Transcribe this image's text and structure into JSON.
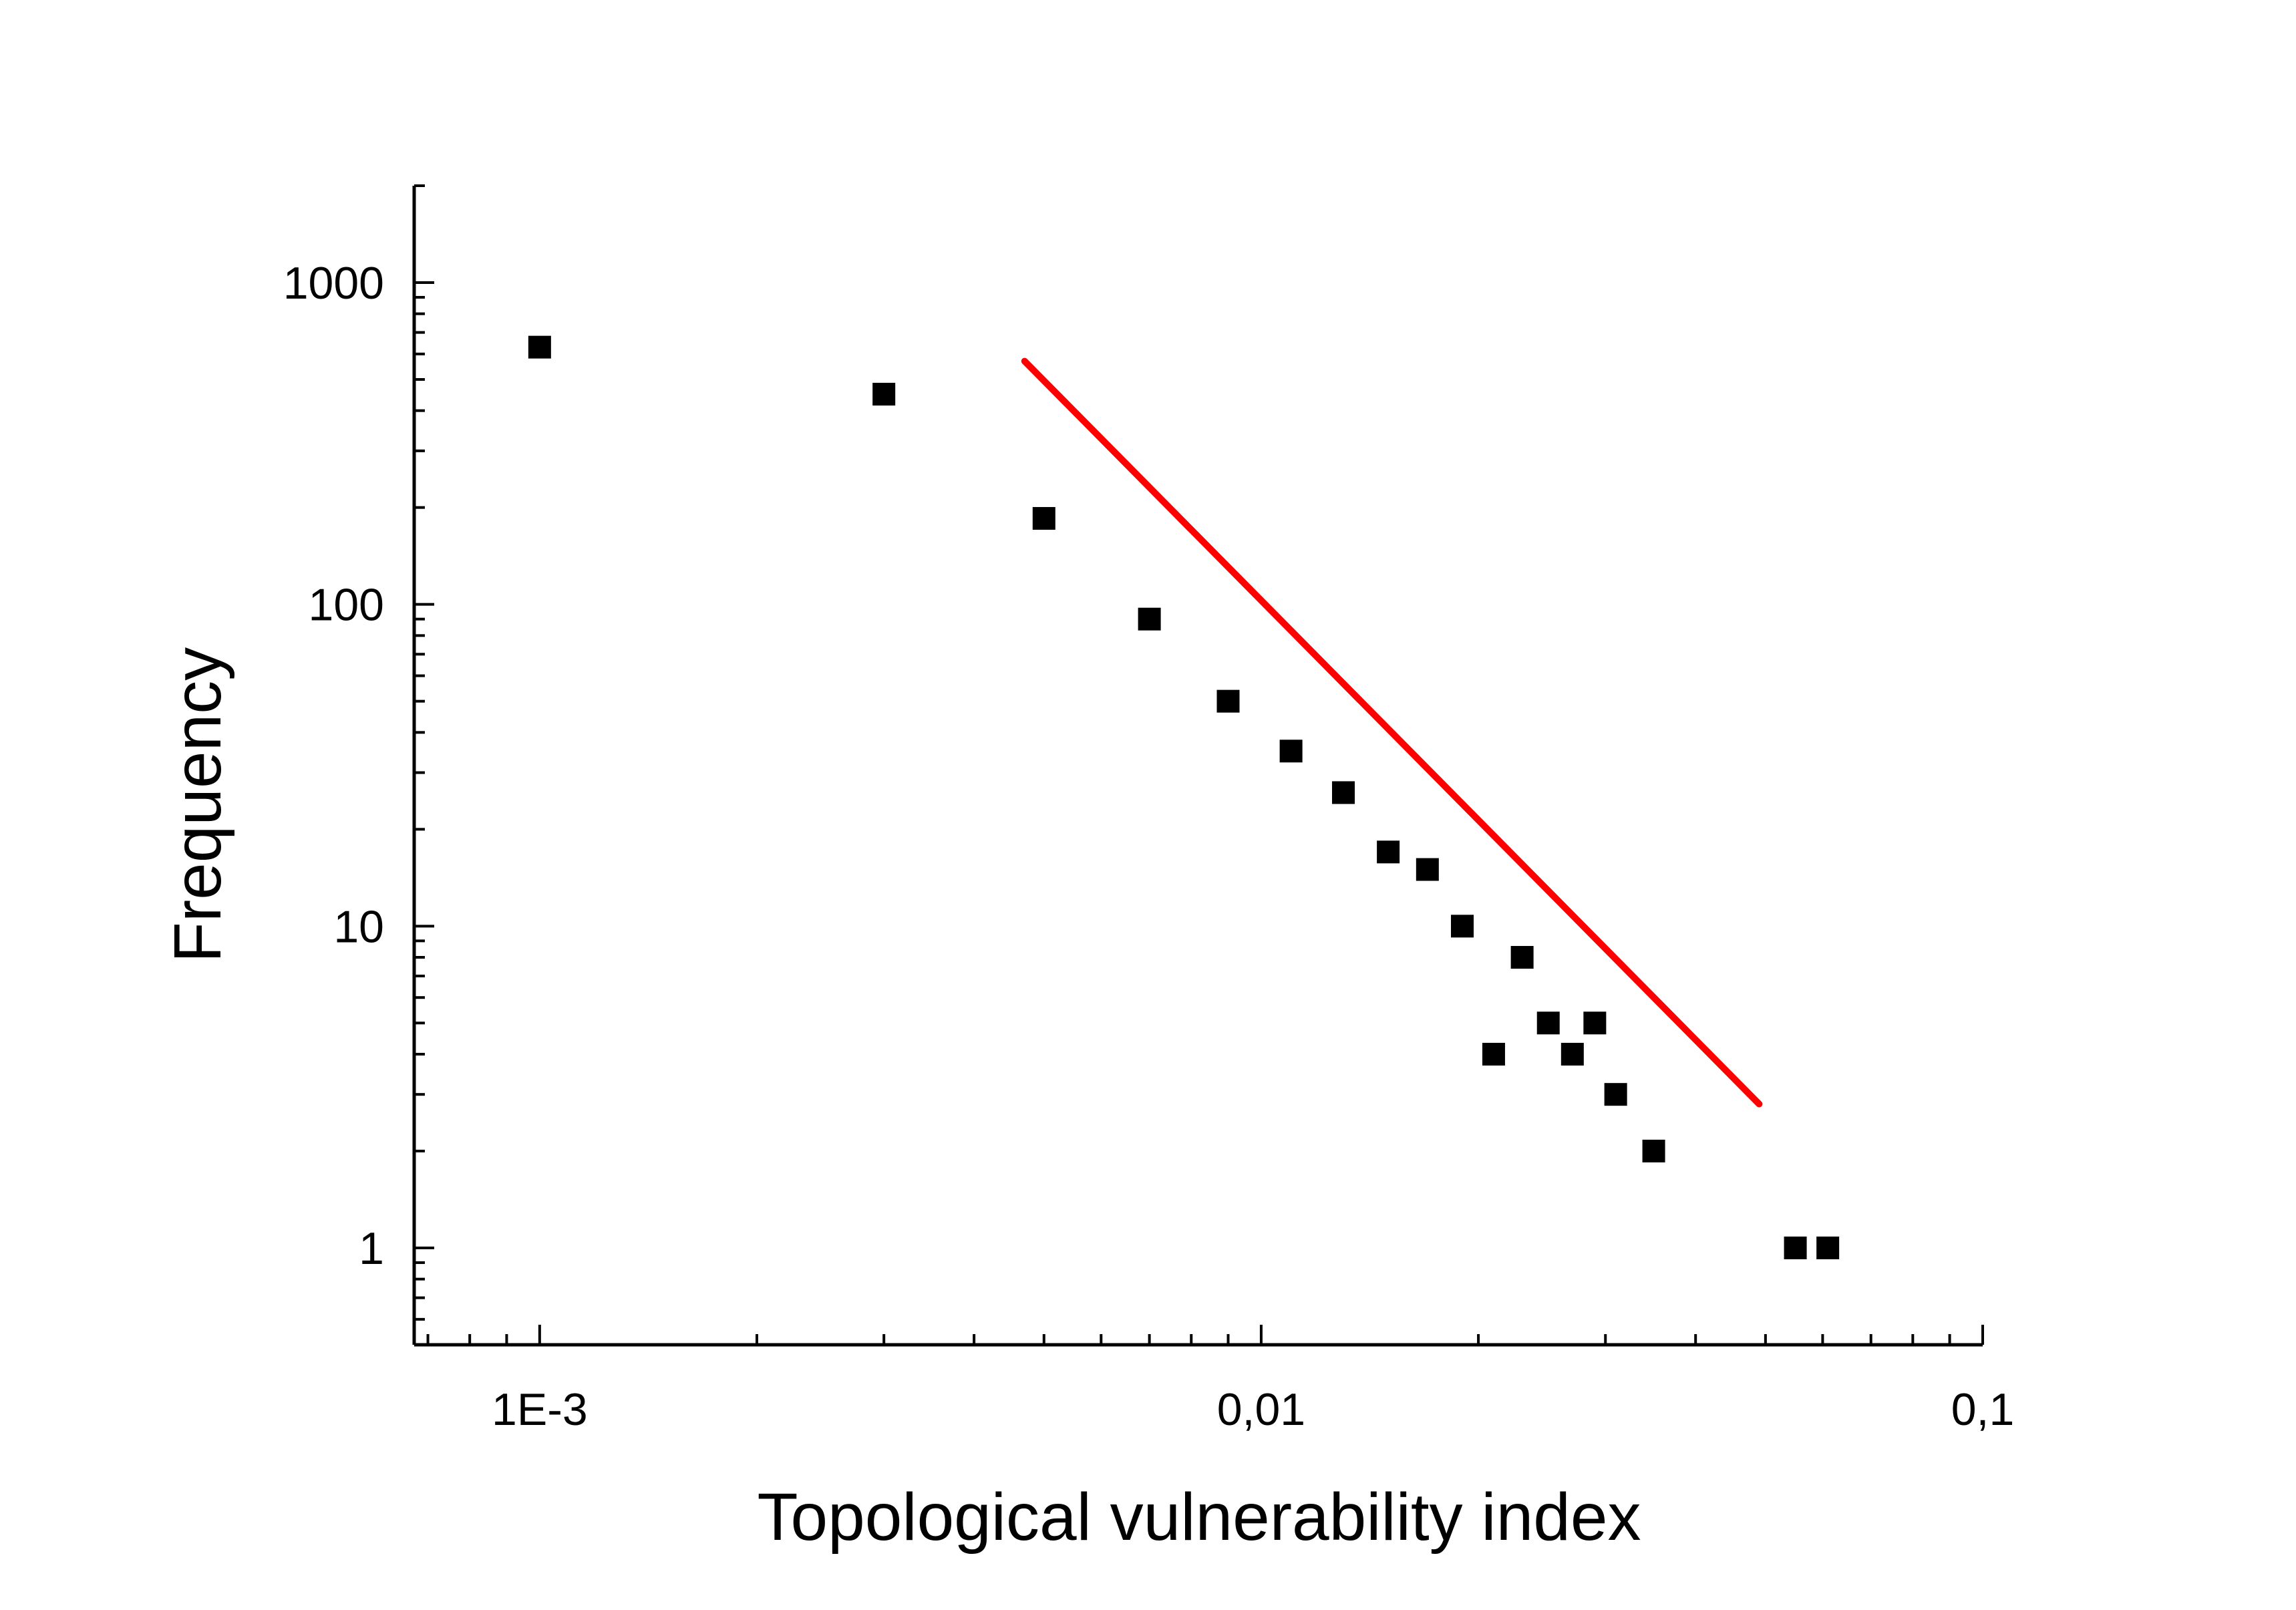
{
  "chart_data": {
    "type": "scatter",
    "title": "",
    "xlabel": "Topological vulnerability index",
    "ylabel": "Frequency",
    "xscale": "log",
    "yscale": "log",
    "xlim": [
      0.00067,
      0.1
    ],
    "ylim": [
      0.5,
      2000
    ],
    "grid": false,
    "x_ticks": [
      {
        "value": 0.001,
        "label": "1E-3"
      },
      {
        "value": 0.01,
        "label": "0,01"
      },
      {
        "value": 0.1,
        "label": "0,1"
      }
    ],
    "y_ticks": [
      {
        "value": 1,
        "label": "1"
      },
      {
        "value": 10,
        "label": "10"
      },
      {
        "value": 100,
        "label": "100"
      },
      {
        "value": 1000,
        "label": "1000"
      }
    ],
    "series": [
      {
        "name": "frequency",
        "marker": "square",
        "color": "#000000",
        "points": [
          {
            "x": 0.001,
            "y": 630
          },
          {
            "x": 0.003,
            "y": 450
          },
          {
            "x": 0.005,
            "y": 185
          },
          {
            "x": 0.007,
            "y": 90
          },
          {
            "x": 0.009,
            "y": 50
          },
          {
            "x": 0.011,
            "y": 35
          },
          {
            "x": 0.013,
            "y": 26
          },
          {
            "x": 0.015,
            "y": 17
          },
          {
            "x": 0.017,
            "y": 15
          },
          {
            "x": 0.019,
            "y": 10
          },
          {
            "x": 0.021,
            "y": 4
          },
          {
            "x": 0.023,
            "y": 8
          },
          {
            "x": 0.025,
            "y": 5
          },
          {
            "x": 0.027,
            "y": 4
          },
          {
            "x": 0.029,
            "y": 5
          },
          {
            "x": 0.031,
            "y": 3
          },
          {
            "x": 0.035,
            "y": 2
          },
          {
            "x": 0.055,
            "y": 1
          },
          {
            "x": 0.061,
            "y": 1
          }
        ]
      },
      {
        "name": "power-law fit",
        "kind": "line",
        "color": "#ff0000",
        "points": [
          {
            "x": 0.0047,
            "y": 570
          },
          {
            "x": 0.049,
            "y": 2.8
          }
        ]
      }
    ]
  }
}
